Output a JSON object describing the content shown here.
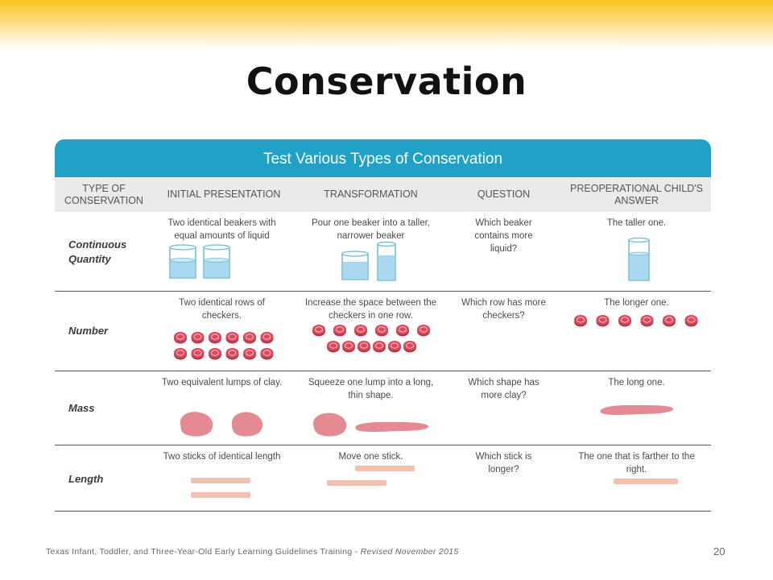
{
  "title": "Conservation",
  "table": {
    "heading": "Test Various Types of Conservation",
    "columns": [
      "TYPE OF CONSERVATION",
      "INITIAL PRESENTATION",
      "TRANSFORMATION",
      "QUESTION",
      "PREOPERATIONAL CHILD'S ANSWER"
    ],
    "rows": [
      {
        "type": "Continuous Quantity",
        "initial": "Two identical beakers with equal amounts of liquid",
        "transformation": "Pour one beaker into a taller, narrower beaker",
        "question": "Which beaker contains more liquid?",
        "answer": "The taller one."
      },
      {
        "type": "Number",
        "initial": "Two identical rows of checkers.",
        "transformation": "Increase the space between the checkers in one row.",
        "question": "Which row has more checkers?",
        "answer": "The longer one."
      },
      {
        "type": "Mass",
        "initial": "Two equivalent lumps of clay.",
        "transformation": "Squeeze one lump into a long, thin shape.",
        "question": "Which shape has more clay?",
        "answer": "The long one."
      },
      {
        "type": "Length",
        "initial": "Two sticks of identical length",
        "transformation": "Move one stick.",
        "question": "Which stick is longer?",
        "answer": "The one that is farther to the right."
      }
    ]
  },
  "footer": {
    "text": "Texas Infant, Toddler, and Three-Year-Old Early Learning Guidelines Training - ",
    "revised": "Revised November 2015",
    "page_number": "20"
  },
  "colors": {
    "header_blue": "#20a2c8",
    "checker_red": "#d94a5c",
    "clay_pink": "#e48a92",
    "stick_peach": "#f3bfae",
    "beaker_blue": "#a9d8f0"
  }
}
